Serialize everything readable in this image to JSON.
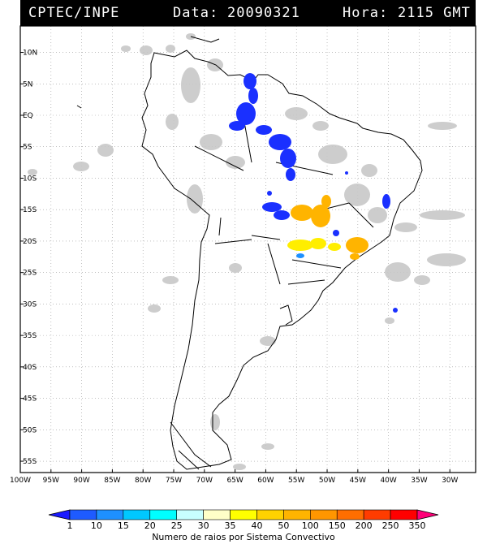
{
  "header": {
    "source": "CPTEC/INPE",
    "date_label": "Data:",
    "date_value": "20090321",
    "time_label": "Hora:",
    "time_value": "2115 GMT"
  },
  "map": {
    "lat_ticks": [
      "10N",
      "5N",
      "EQ",
      "5S",
      "10S",
      "15S",
      "20S",
      "25S",
      "30S",
      "35S",
      "40S",
      "45S",
      "50S",
      "55S"
    ],
    "lat_values": [
      10,
      5,
      0,
      -5,
      -10,
      -15,
      -20,
      -25,
      -30,
      -35,
      -40,
      -45,
      -50,
      -55
    ],
    "lon_ticks": [
      "100W",
      "95W",
      "90W",
      "85W",
      "80W",
      "75W",
      "70W",
      "65W",
      "60W",
      "55W",
      "50W",
      "45W",
      "40W",
      "35W",
      "30W"
    ],
    "lon_values": [
      -100,
      -95,
      -90,
      -85,
      -80,
      -75,
      -70,
      -65,
      -60,
      -55,
      -50,
      -45,
      -40,
      -35,
      -30
    ],
    "colors": {
      "grid": "#999999",
      "cloud": "#c8c8c8",
      "coast": "#000000",
      "blue_activity": "#1a30ff",
      "orange_activity": "#ffb400",
      "yellow_activity": "#ffee00"
    }
  },
  "colorbar": {
    "labels": [
      "1",
      "10",
      "15",
      "20",
      "25",
      "30",
      "35",
      "40",
      "50",
      "100",
      "150",
      "200",
      "250",
      "350"
    ],
    "colors": [
      "#1b1bff",
      "#1e5bff",
      "#1e90ff",
      "#00c8ff",
      "#00ffff",
      "#c8ffff",
      "#ffffc8",
      "#ffff00",
      "#ffd200",
      "#ffb400",
      "#ff9600",
      "#ff6e00",
      "#ff3c00",
      "#ff0000",
      "#ff0078"
    ],
    "title": "Numero de raios por Sistema Convectivo"
  }
}
